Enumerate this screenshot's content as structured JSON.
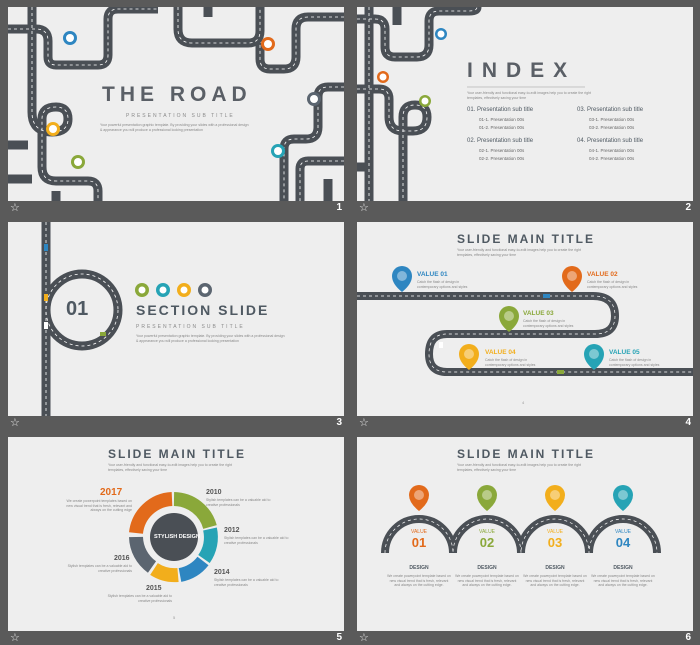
{
  "footer": {
    "icon": "star-icon"
  },
  "colors": {
    "road": "#4a4f55",
    "blue": "#2e86c1",
    "orange": "#e26a1b",
    "green": "#8aa83a",
    "yellow": "#f2ae1c",
    "teal": "#26a3b5",
    "gray": "#5b6570",
    "text": "#4f5962"
  },
  "slides": [
    {
      "number": "1",
      "title": "THE ROAD",
      "subtitle": "PRESENTATION SUB TITLE",
      "body": "Your powerful presentation graphic template. By providing your slides with a professional design & appearance you will produce a professional looking presentation"
    },
    {
      "number": "2",
      "title": "INDEX",
      "body": "Your user-friendly and functional easy-to-edit images help you to create the right templates, effectively saving your time",
      "items": [
        {
          "title": "01. Presentation sub title",
          "subs": [
            "01-1. Presentation 00s",
            "01-2. Presentation 00s"
          ]
        },
        {
          "title": "03. Presentation sub title",
          "subs": [
            "03-1. Presentation 00s",
            "03-2. Presentation 00s"
          ]
        },
        {
          "title": "02. Presentation sub title",
          "subs": [
            "02-1. Presentation 00s",
            "02-2. Presentation 00s"
          ]
        },
        {
          "title": "04. Presentation sub title",
          "subs": [
            "04-1. Presentation 00s",
            "04-2. Presentation 00s"
          ]
        }
      ]
    },
    {
      "number": "3",
      "section_num": "01",
      "title": "SECTION SLIDE",
      "subtitle": "PRESENTATION SUB TITLE",
      "body": "Your powerful presentation graphic template. By providing your slides with a professional design & appearance you will produce a professional looking presentation"
    },
    {
      "number": "4",
      "title": "SLIDE MAIN TITLE",
      "body": "Your user-friendly and functional easy-to-edit images help you to create the right templates, effectively saving your time",
      "values": [
        {
          "label": "VALUE 01",
          "desc": "Catch the flash of design in contemporary options and styles"
        },
        {
          "label": "VALUE 02",
          "desc": "Catch the flash of design in contemporary options and styles"
        },
        {
          "label": "VALUE 03",
          "desc": "Catch the flash of design in contemporary options and styles"
        },
        {
          "label": "VALUE 04",
          "desc": "Catch the flash of design in contemporary options and styles"
        },
        {
          "label": "VALUE 05",
          "desc": "Catch the flash of design in contemporary options and styles"
        }
      ],
      "page": "4"
    },
    {
      "number": "5",
      "title": "SLIDE MAIN TITLE",
      "body": "Your user-friendly and functional easy-to-edit images help you to create the right templates, effectively saving your time",
      "center": "STYLISH DESIGN",
      "years": [
        {
          "year": "2017",
          "desc": "We create powerpoint templates based on new visual trend that is fresh, relevant and always on the cutting edge"
        },
        {
          "year": "2010",
          "desc": "Stylish templates can be a valuable aid to creative professionals"
        },
        {
          "year": "2012",
          "desc": "Stylish templates can be a valuable aid to creative professionals"
        },
        {
          "year": "2014",
          "desc": "Stylish templates can be a valuable aid to creative professionals"
        },
        {
          "year": "2015",
          "desc": "Stylish templates can be a valuable aid to creative professionals"
        },
        {
          "year": "2016",
          "desc": "Stylish templates can be a valuable aid to creative professionals"
        }
      ],
      "page": "5"
    },
    {
      "number": "6",
      "title": "SLIDE MAIN TITLE",
      "body": "Your user-friendly and functional easy-to-edit images help you to create the right templates, effectively saving your time",
      "items": [
        {
          "value": "VALUE",
          "num": "01",
          "design": "DESIGN",
          "desc": "We create powerpoint template based on new visual trend that is fresh, relevant and always on the cutting edge."
        },
        {
          "value": "VALUE",
          "num": "02",
          "design": "DESIGN",
          "desc": "We create powerpoint template based on new visual trend that is fresh, relevant and always on the cutting edge."
        },
        {
          "value": "VALUE",
          "num": "03",
          "design": "DESIGN",
          "desc": "We create powerpoint template based on new visual trend that is fresh, relevant and always on the cutting edge."
        },
        {
          "value": "VALUE",
          "num": "04",
          "design": "DESIGN",
          "desc": "We create powerpoint template based on new visual trend that is fresh, relevant and always on the cutting edge."
        }
      ]
    }
  ]
}
